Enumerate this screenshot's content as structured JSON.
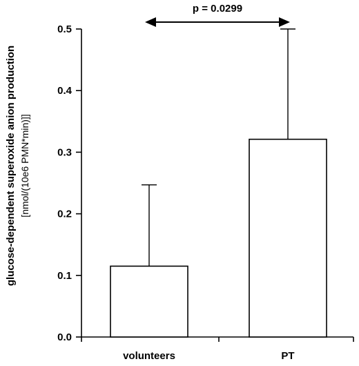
{
  "chart_data": {
    "type": "bar",
    "title": "",
    "xlabel": "",
    "ylabel": "glucose-dependent superoxide anion production",
    "ylabel_unit": "[nmol/(10e6 PMN*min)]]",
    "ylim": [
      0,
      0.5
    ],
    "yticks": [
      "0.0",
      "0.1",
      "0.2",
      "0.3",
      "0.4",
      "0.5"
    ],
    "ytick_values": [
      0,
      0.1,
      0.2,
      0.3,
      0.4,
      0.5
    ],
    "categories": [
      "volunteers",
      "PT"
    ],
    "values": [
      0.115,
      0.321
    ],
    "error_upper": [
      0.247,
      0.5
    ],
    "annotation": "p = 0.0299",
    "grid": false,
    "colors": {
      "bar_fill": "#ffffff",
      "stroke": "#000000"
    }
  }
}
